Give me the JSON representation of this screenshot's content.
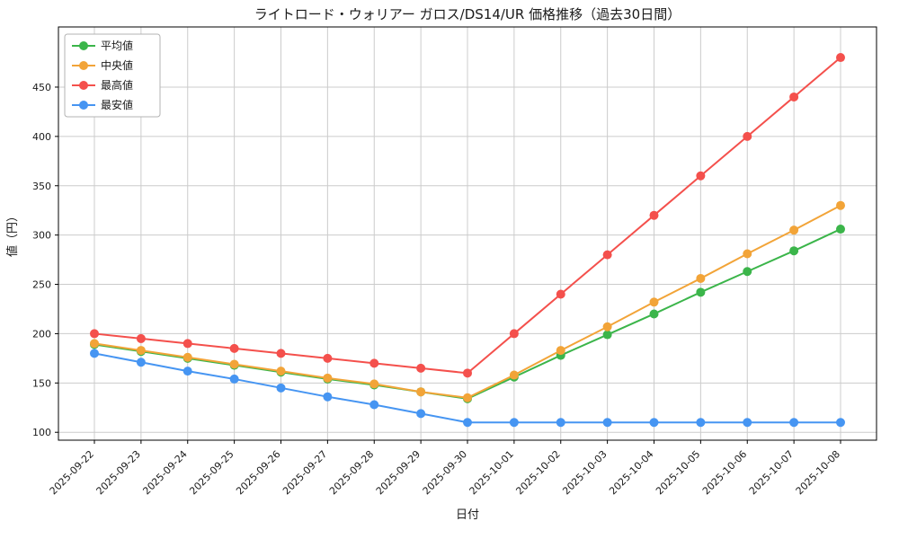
{
  "chart_data": {
    "type": "line",
    "title": "ライトロード・ウォリアー ガロス/DS14/UR 価格推移（過去30日間）",
    "xlabel": "日付",
    "ylabel": "値（円）",
    "ylim": [
      92,
      511
    ],
    "yticks": [
      100,
      150,
      200,
      250,
      300,
      350,
      400,
      450
    ],
    "grid": true,
    "legend_position": "upper-left",
    "categories": [
      "2025-09-22",
      "2025-09-23",
      "2025-09-24",
      "2025-09-25",
      "2025-09-26",
      "2025-09-27",
      "2025-09-28",
      "2025-09-29",
      "2025-09-30",
      "2025-10-01",
      "2025-10-02",
      "2025-10-03",
      "2025-10-04",
      "2025-10-05",
      "2025-10-06",
      "2025-10-07",
      "2025-10-08"
    ],
    "series": [
      {
        "key": "average",
        "name": "平均値",
        "color": "#3bb54a",
        "values": [
          189,
          182,
          175,
          168,
          161,
          154,
          148,
          141,
          134,
          156,
          178,
          199,
          220,
          242,
          263,
          284,
          306
        ]
      },
      {
        "key": "median",
        "name": "中央値",
        "color": "#f2a438",
        "values": [
          190,
          183,
          176,
          169,
          162,
          155,
          149,
          141,
          135,
          158,
          183,
          207,
          232,
          256,
          281,
          305,
          330
        ]
      },
      {
        "key": "max",
        "name": "最高値",
        "color": "#f4504c",
        "values": [
          200,
          195,
          190,
          185,
          180,
          175,
          170,
          165,
          160,
          200,
          240,
          280,
          320,
          360,
          400,
          440,
          480
        ]
      },
      {
        "key": "min",
        "name": "最安値",
        "color": "#4695f2",
        "values": [
          180,
          171,
          162,
          154,
          145,
          136,
          128,
          119,
          110,
          110,
          110,
          110,
          110,
          110,
          110,
          110,
          110
        ]
      }
    ]
  },
  "style": {
    "grid_color": "#cccccc",
    "spine_color": "#000000",
    "legend_border_color": "#b3b3b3",
    "background": "#ffffff"
  }
}
